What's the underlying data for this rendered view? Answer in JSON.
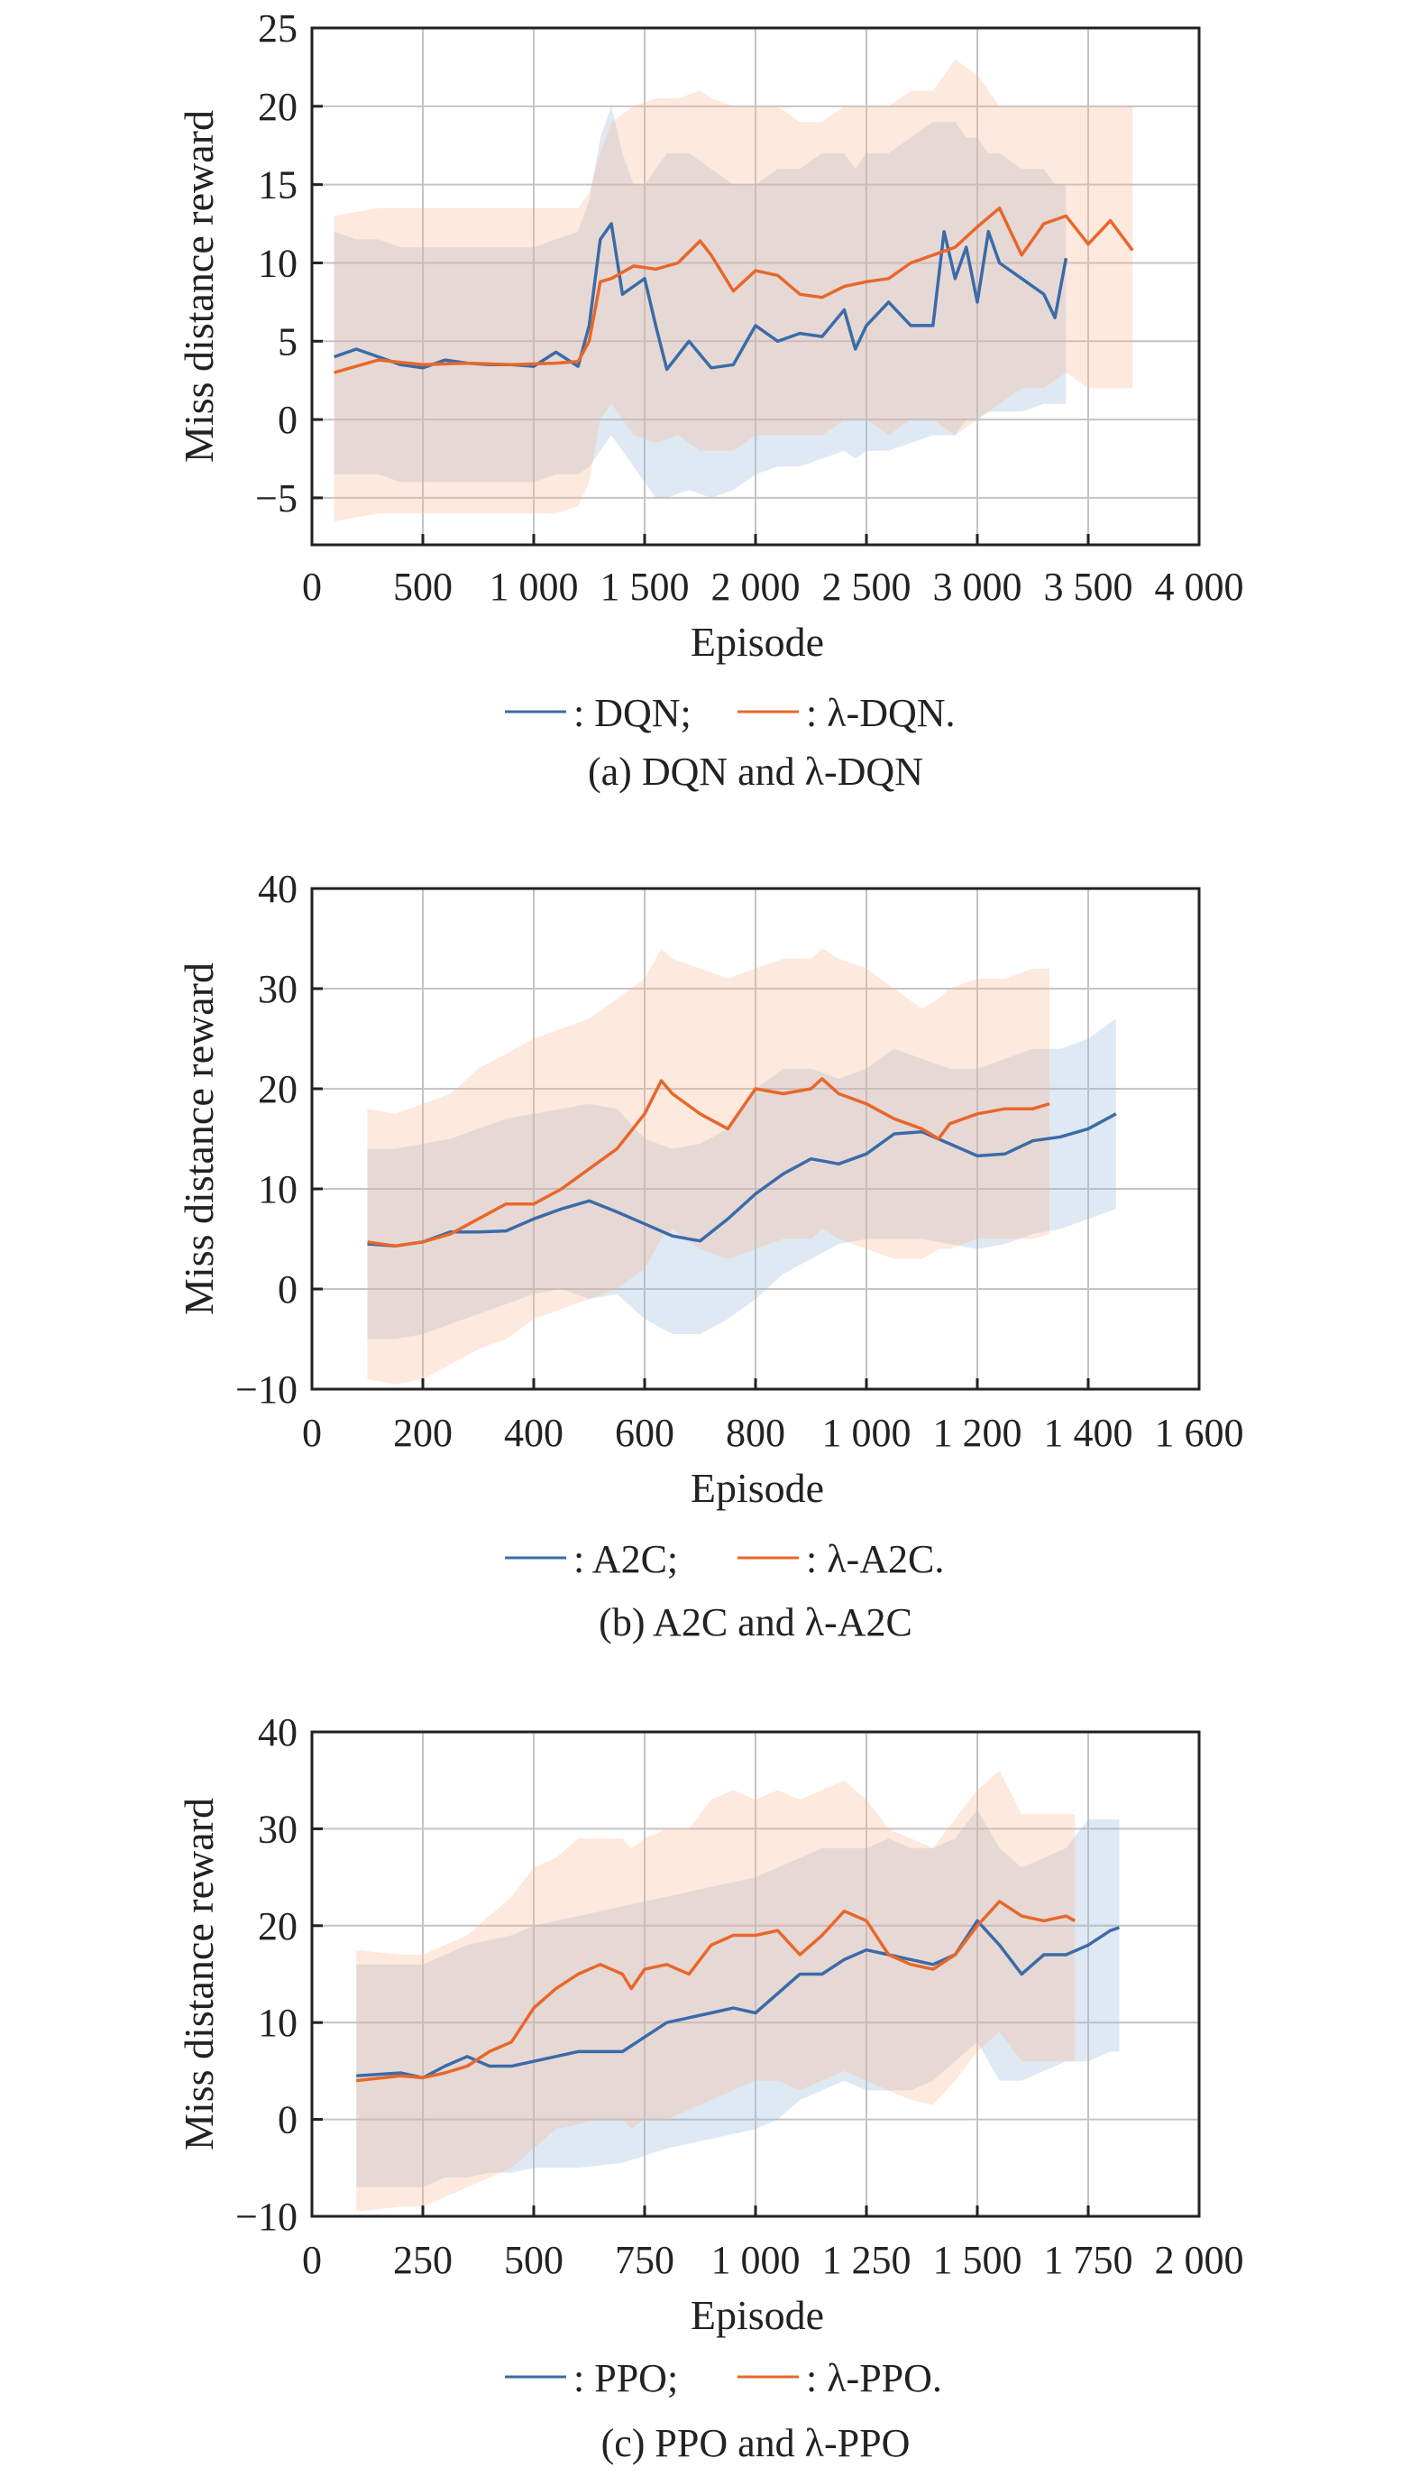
{
  "colors": {
    "series_a": "#3b6ba8",
    "series_b": "#e8672a",
    "band_a": "#9dbcdc",
    "band_b": "#f7b590",
    "grid": "#c4c4c4",
    "axis": "#222222"
  },
  "chart_data": [
    {
      "type": "line",
      "title": "",
      "caption": "(a) DQN and λ-DQN",
      "xlabel": "Episode",
      "ylabel": "Miss distance reward",
      "xlim": [
        0,
        4000
      ],
      "ylim": [
        -8,
        25
      ],
      "xticks": [
        0,
        500,
        1000,
        1500,
        2000,
        2500,
        3000,
        3500,
        4000
      ],
      "xtick_labels": [
        "0",
        "500",
        "1 000",
        "1 500",
        "2 000",
        "2 500",
        "3 000",
        "3 500",
        "4 000"
      ],
      "yticks": [
        -5,
        0,
        5,
        10,
        15,
        20,
        25
      ],
      "ytick_labels": [
        "−5",
        "0",
        "5",
        "10",
        "15",
        "20",
        "25"
      ],
      "grid": true,
      "legend_placement": "bottom-center",
      "legend": [
        ": DQN;",
        ": λ-DQN."
      ],
      "series": [
        {
          "name": "DQN",
          "x": [
            100,
            200,
            300,
            400,
            500,
            600,
            700,
            800,
            900,
            1000,
            1100,
            1200,
            1250,
            1300,
            1350,
            1400,
            1450,
            1500,
            1550,
            1600,
            1700,
            1800,
            1900,
            2000,
            2100,
            2200,
            2300,
            2400,
            2450,
            2500,
            2600,
            2700,
            2800,
            2850,
            2900,
            2950,
            3000,
            3050,
            3100,
            3200,
            3300,
            3350,
            3400
          ],
          "mean": [
            4,
            4.5,
            4,
            3.5,
            3.3,
            3.8,
            3.6,
            3.5,
            3.5,
            3.4,
            4.3,
            3.4,
            6,
            11.5,
            12.5,
            8,
            8.5,
            9,
            6,
            3.2,
            5,
            3.3,
            3.5,
            6,
            5,
            5.5,
            5.3,
            7,
            4.5,
            6,
            7.5,
            6,
            6,
            12,
            9,
            11,
            7.5,
            12,
            10,
            9,
            8,
            6.5,
            10.3
          ],
          "upper": [
            12,
            11.5,
            11.5,
            11,
            11,
            11,
            11,
            11,
            11,
            11,
            11.5,
            12,
            14,
            18,
            20,
            17,
            15,
            15,
            16,
            17,
            17,
            16,
            15,
            15,
            16,
            16,
            17,
            17,
            16,
            17,
            17,
            18,
            19,
            19,
            19,
            18,
            18,
            17,
            17,
            16,
            16,
            15,
            15
          ],
          "lower": [
            -3.5,
            -3.5,
            -3.5,
            -4,
            -4,
            -4,
            -4,
            -4,
            -4,
            -4,
            -3.5,
            -3.5,
            -3,
            -2,
            -1,
            -2,
            -3,
            -4,
            -5,
            -5,
            -4.5,
            -5,
            -4.5,
            -3.5,
            -3,
            -3,
            -2.5,
            -2,
            -2.5,
            -2,
            -2,
            -1.5,
            -1,
            -1,
            -1,
            0,
            0,
            0.5,
            0.5,
            0.5,
            1,
            1,
            1
          ]
        },
        {
          "name": "λ-DQN",
          "x": [
            100,
            300,
            500,
            700,
            900,
            1100,
            1200,
            1250,
            1300,
            1350,
            1450,
            1550,
            1650,
            1750,
            1800,
            1900,
            2000,
            2100,
            2200,
            2300,
            2400,
            2500,
            2600,
            2700,
            2800,
            2900,
            3000,
            3100,
            3200,
            3300,
            3400,
            3500,
            3600,
            3700
          ],
          "mean": [
            3,
            3.8,
            3.5,
            3.6,
            3.5,
            3.6,
            3.7,
            5,
            8.8,
            9,
            9.8,
            9.6,
            10,
            11.4,
            10.5,
            8.2,
            9.5,
            9.2,
            8,
            7.8,
            8.5,
            8.8,
            9,
            10,
            10.5,
            11,
            12.3,
            13.5,
            10.5,
            12.5,
            13,
            11.2,
            12.7,
            10.8
          ],
          "upper": [
            13,
            13.5,
            13.5,
            13.5,
            13.5,
            13.5,
            13.5,
            14.5,
            17,
            19,
            20,
            20.5,
            20.5,
            21,
            20.5,
            20,
            20,
            20,
            19,
            19,
            20,
            20,
            20,
            21,
            21,
            23,
            22,
            20,
            20,
            20,
            20,
            20,
            20,
            20
          ],
          "lower": [
            -6.5,
            -6,
            -6,
            -6,
            -6,
            -6,
            -5.5,
            -4,
            0,
            1,
            -1,
            -1.5,
            -1,
            -2,
            -2,
            -2,
            -1,
            -1,
            -1,
            -1,
            0,
            0,
            -1,
            0,
            0,
            -1,
            0,
            1,
            2,
            2,
            3,
            2,
            2,
            2
          ]
        }
      ]
    },
    {
      "type": "line",
      "title": "",
      "caption": "(b) A2C and λ-A2C",
      "xlabel": "Episode",
      "ylabel": "Miss distance reward",
      "xlim": [
        0,
        1600
      ],
      "ylim": [
        -10,
        40
      ],
      "xticks": [
        0,
        200,
        400,
        600,
        800,
        1000,
        1200,
        1400,
        1600
      ],
      "xtick_labels": [
        "0",
        "200",
        "400",
        "600",
        "800",
        "1 000",
        "1 200",
        "1 400",
        "1 600"
      ],
      "yticks": [
        -10,
        0,
        10,
        20,
        30,
        40
      ],
      "ytick_labels": [
        "−10",
        "0",
        "10",
        "20",
        "30",
        "40"
      ],
      "grid": true,
      "legend_placement": "bottom-center",
      "legend": [
        ": A2C;",
        ": λ-A2C."
      ],
      "series": [
        {
          "name": "A2C",
          "x": [
            100,
            150,
            200,
            250,
            300,
            350,
            400,
            450,
            500,
            550,
            600,
            650,
            700,
            750,
            800,
            850,
            900,
            950,
            1000,
            1050,
            1100,
            1150,
            1200,
            1250,
            1300,
            1350,
            1400,
            1450
          ],
          "mean": [
            4.5,
            4.3,
            4.7,
            5.7,
            5.7,
            5.8,
            7,
            8,
            8.8,
            7.7,
            6.5,
            5.3,
            4.8,
            7,
            9.5,
            11.5,
            13,
            12.5,
            13.5,
            15.5,
            15.7,
            14.5,
            13.3,
            13.5,
            14.8,
            15.2,
            16,
            17.5
          ],
          "upper": [
            14,
            14,
            14.5,
            15,
            16,
            17,
            17.5,
            18,
            18.5,
            18,
            15,
            14,
            14.5,
            16,
            20,
            22,
            22,
            21,
            22,
            24,
            23,
            22,
            22,
            23,
            24,
            24,
            25,
            27
          ],
          "lower": [
            -5,
            -5,
            -4.5,
            -3.5,
            -2.5,
            -1.5,
            -0.5,
            0,
            -1,
            -0.5,
            -3,
            -4.5,
            -4.5,
            -3,
            -1,
            1.5,
            3,
            4.5,
            5,
            5,
            5,
            4.5,
            4,
            4.5,
            5.5,
            6,
            7,
            8
          ]
        },
        {
          "name": "λ-A2C",
          "x": [
            100,
            150,
            200,
            250,
            300,
            350,
            400,
            450,
            500,
            550,
            600,
            630,
            650,
            700,
            750,
            800,
            850,
            900,
            920,
            950,
            1000,
            1050,
            1100,
            1130,
            1150,
            1200,
            1250,
            1300,
            1330
          ],
          "mean": [
            4.7,
            4.3,
            4.7,
            5.5,
            7,
            8.5,
            8.5,
            10,
            12,
            14,
            17.5,
            20.8,
            19.5,
            17.5,
            16,
            20,
            19.5,
            20,
            21,
            19.5,
            18.5,
            17,
            16,
            15,
            16.5,
            17.5,
            18,
            18,
            18.5
          ],
          "upper": [
            18,
            17.5,
            18.5,
            19.5,
            22,
            23.5,
            25,
            26,
            27,
            29,
            31,
            34,
            33,
            32,
            31,
            32,
            33,
            33,
            34,
            33,
            32,
            30,
            28,
            29,
            30,
            31,
            31,
            32,
            32
          ],
          "lower": [
            -9,
            -9.5,
            -9,
            -7.5,
            -6,
            -5,
            -3,
            -2,
            -1,
            0,
            2,
            5,
            6,
            4,
            3,
            4,
            5,
            5,
            6,
            5,
            4,
            3,
            3,
            4,
            4,
            5,
            5,
            5,
            5.5
          ]
        }
      ]
    },
    {
      "type": "line",
      "title": "",
      "caption": "(c) PPO and λ-PPO",
      "xlabel": "Episode",
      "ylabel": "Miss distance reward",
      "xlim": [
        0,
        2000
      ],
      "ylim": [
        -10,
        40
      ],
      "xticks": [
        0,
        250,
        500,
        750,
        1000,
        1250,
        1500,
        1750,
        2000
      ],
      "xtick_labels": [
        "0",
        "250",
        "500",
        "750",
        "1 000",
        "1 250",
        "1 500",
        "1 750",
        "2 000"
      ],
      "yticks": [
        -10,
        0,
        10,
        20,
        30,
        40
      ],
      "ytick_labels": [
        "−10",
        "0",
        "10",
        "20",
        "30",
        "40"
      ],
      "grid": true,
      "legend_placement": "bottom-center",
      "legend": [
        ": PPO;",
        ": λ-PPO."
      ],
      "series": [
        {
          "name": "PPO",
          "x": [
            100,
            200,
            250,
            300,
            350,
            400,
            450,
            500,
            600,
            700,
            800,
            900,
            950,
            1000,
            1050,
            1100,
            1150,
            1200,
            1250,
            1300,
            1350,
            1400,
            1450,
            1500,
            1550,
            1600,
            1650,
            1700,
            1750,
            1800,
            1820
          ],
          "mean": [
            4.5,
            4.8,
            4.3,
            5.5,
            6.5,
            5.5,
            5.5,
            6,
            7,
            7,
            10,
            11,
            11.5,
            11,
            13,
            15,
            15,
            16.5,
            17.5,
            17,
            16.5,
            16,
            17,
            20.5,
            18,
            15,
            17,
            17,
            18,
            19.5,
            19.8
          ],
          "upper": [
            16,
            16,
            16,
            17,
            18,
            18.5,
            19,
            20,
            21,
            22,
            23,
            24,
            24.5,
            25,
            26,
            27,
            28,
            28,
            28,
            29,
            28,
            28,
            29,
            32,
            28,
            26,
            27,
            28,
            31,
            31,
            31
          ],
          "lower": [
            -7,
            -7,
            -7,
            -6,
            -6,
            -5.5,
            -5.5,
            -5,
            -5,
            -4.5,
            -3,
            -2,
            -1.5,
            -1,
            0,
            2,
            3,
            4,
            3,
            3,
            3,
            4,
            6,
            8,
            4,
            4,
            5,
            6,
            6,
            7,
            7
          ]
        },
        {
          "name": "λ-PPO",
          "x": [
            100,
            200,
            250,
            300,
            350,
            400,
            450,
            500,
            550,
            600,
            650,
            700,
            720,
            750,
            800,
            850,
            900,
            950,
            1000,
            1050,
            1100,
            1150,
            1200,
            1250,
            1300,
            1350,
            1400,
            1450,
            1500,
            1550,
            1600,
            1650,
            1700,
            1720
          ],
          "mean": [
            4,
            4.5,
            4.3,
            4.8,
            5.5,
            7,
            8,
            11.5,
            13.5,
            15,
            16,
            15,
            13.5,
            15.5,
            16,
            15,
            18,
            19,
            19,
            19.5,
            17,
            19,
            21.5,
            20.5,
            17,
            16,
            15.5,
            17,
            20,
            22.5,
            21,
            20.5,
            21,
            20.5
          ],
          "upper": [
            17.5,
            17,
            17,
            18,
            19,
            21,
            23,
            26,
            27,
            29,
            29,
            29,
            28,
            29,
            30,
            30,
            33,
            34,
            33,
            34,
            33,
            34,
            35,
            33,
            30,
            29,
            28,
            31,
            34,
            36,
            31.5,
            31.5,
            31.5,
            31.5
          ],
          "lower": [
            -9.5,
            -9,
            -9,
            -8,
            -7,
            -6,
            -5,
            -3,
            -1,
            -0.5,
            0,
            0,
            -1,
            0,
            0,
            1,
            2,
            3,
            4,
            4,
            3,
            4,
            5,
            4,
            3,
            2,
            1.5,
            4,
            7,
            9,
            6,
            6,
            6,
            6
          ]
        }
      ]
    }
  ]
}
